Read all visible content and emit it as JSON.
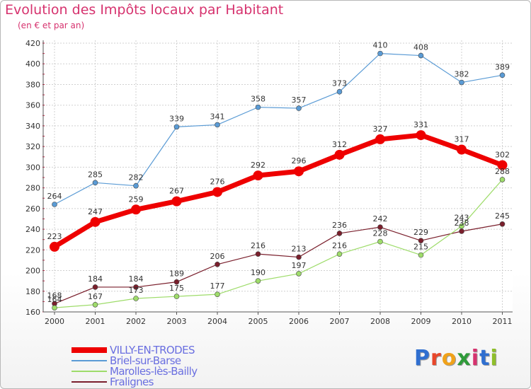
{
  "title": "Evolution des Impôts locaux par Habitant",
  "subtitle": "(en € et par an)",
  "logo": {
    "text": "Proxiti",
    "letters": [
      "P",
      "r",
      "o",
      "x",
      "i",
      "t",
      "i"
    ],
    "colors": [
      "#2f6fd0",
      "#e8462a",
      "#f0a21a",
      "#2f9b3a",
      "#d6326e",
      "#2f6fd0",
      "#8fbf2a"
    ]
  },
  "chart_data": {
    "type": "line",
    "x": [
      "2000",
      "2001",
      "2002",
      "2003",
      "2004",
      "2005",
      "2006",
      "2007",
      "2008",
      "2009",
      "2010",
      "2011"
    ],
    "ylim": [
      160,
      420
    ],
    "yticks": [
      160,
      180,
      200,
      220,
      240,
      260,
      280,
      300,
      320,
      340,
      360,
      380,
      400,
      420
    ],
    "grid": true,
    "legend_position": "bottom-left",
    "series": [
      {
        "name": "VILLY-EN-TRODES",
        "color": "#ee0000",
        "values": [
          223,
          247,
          259,
          267,
          276,
          292,
          296,
          312,
          327,
          331,
          317,
          302
        ]
      },
      {
        "name": "Briel-sur-Barse",
        "color": "#5a9bd5",
        "values": [
          264,
          285,
          282,
          339,
          341,
          358,
          357,
          373,
          410,
          408,
          382,
          389
        ]
      },
      {
        "name": "Marolles-lès-Bailly",
        "color": "#9edc6a",
        "values": [
          164,
          167,
          173,
          175,
          177,
          190,
          197,
          216,
          228,
          215,
          243,
          288
        ]
      },
      {
        "name": "Fralignes",
        "color": "#7a1f2c",
        "values": [
          168,
          184,
          184,
          189,
          206,
          216,
          213,
          236,
          242,
          229,
          238,
          245
        ]
      }
    ]
  }
}
